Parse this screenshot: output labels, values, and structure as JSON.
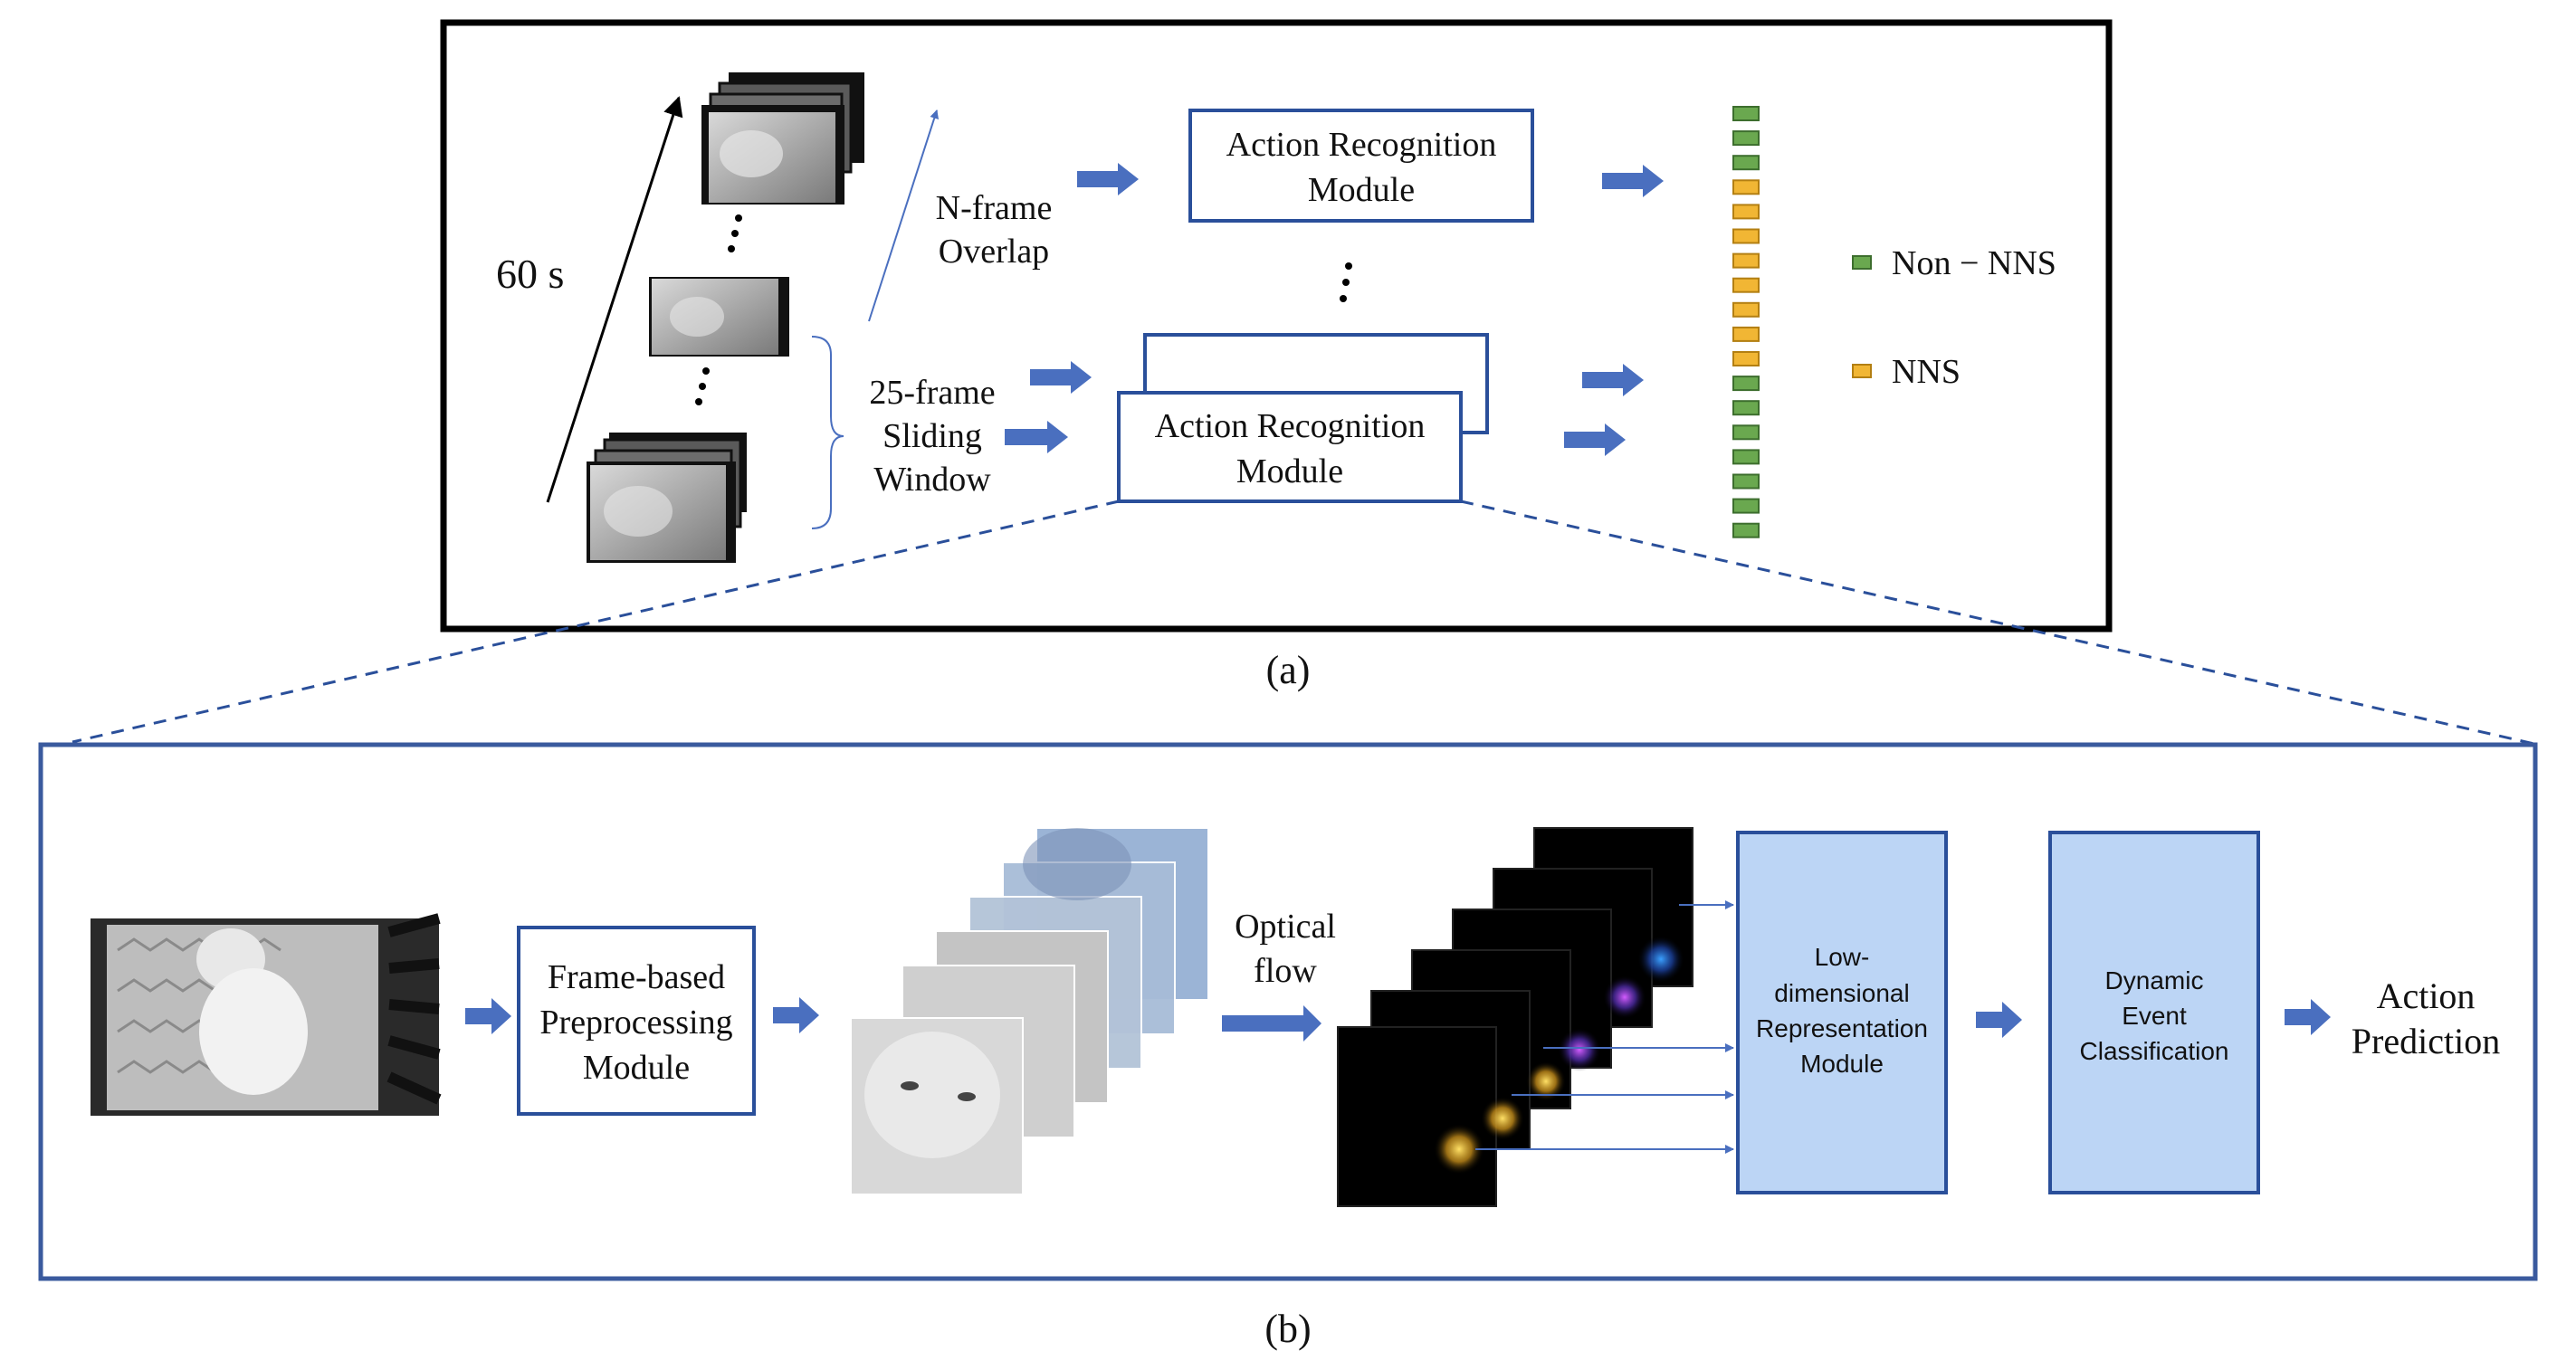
{
  "panel_a": {
    "time_label": "60 s",
    "overlap_label_line1": "N-frame",
    "overlap_label_line2": "Overlap",
    "window_label_line1": "25-frame",
    "window_label_line2": "Sliding",
    "window_label_line3": "Window",
    "module_top_line1": "Action Recognition",
    "module_top_line2": "Module",
    "module_bottom_line1": "Action Recognition",
    "module_bottom_line2": "Module",
    "legend_non_nns": "Non − NNS",
    "legend_nns": "NNS",
    "caption": "(a)",
    "prediction_sequence": [
      "non-nns",
      "non-nns",
      "non-nns",
      "nns",
      "nns",
      "nns",
      "nns",
      "nns",
      "nns",
      "nns",
      "nns",
      "non-nns",
      "non-nns",
      "non-nns",
      "non-nns",
      "non-nns",
      "non-nns",
      "non-nns"
    ],
    "colors": {
      "non_nns": "#6aa84f",
      "nns": "#f1b634",
      "arrow": "#4a6fbf"
    }
  },
  "panel_b": {
    "preprocess_line1": "Frame-based",
    "preprocess_line2": "Preprocessing",
    "preprocess_line3": "Module",
    "optical_flow_line1": "Optical",
    "optical_flow_line2": "flow",
    "lowdim_line1": "Low-",
    "lowdim_line2": "dimensional",
    "lowdim_line3": "Representation",
    "lowdim_line4": "Module",
    "dynamic_line1": "Dynamic",
    "dynamic_line2": "Event",
    "dynamic_line3": "Classification",
    "action_line1": "Action",
    "action_line2": "Prediction",
    "caption": "(b)",
    "colors": {
      "frame": "#3a5a9e",
      "block_fill": "#bcd5f5",
      "arrow": "#4a6fbf"
    }
  }
}
